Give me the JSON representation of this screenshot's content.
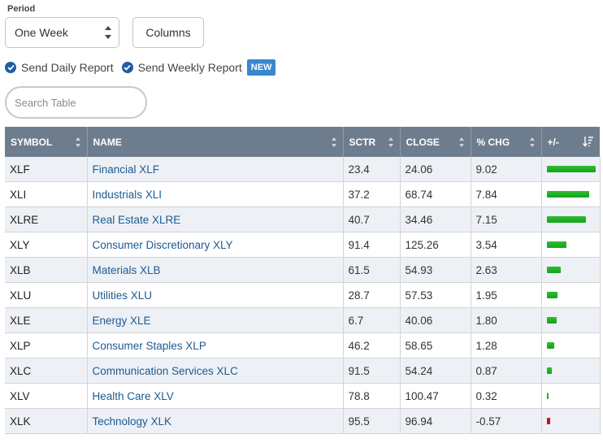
{
  "period": {
    "label": "Period",
    "selected": "One Week"
  },
  "columns_button": "Columns",
  "reports": {
    "daily": "Send Daily Report",
    "weekly": "Send Weekly Report",
    "new_badge": "NEW"
  },
  "search": {
    "placeholder": "Search Table",
    "value": ""
  },
  "table": {
    "headers": [
      "SYMBOL",
      "NAME",
      "SCTR",
      "CLOSE",
      "% CHG",
      "+/-"
    ],
    "rows": [
      {
        "symbol": "XLF",
        "name": "Financial XLF",
        "sctr": "23.4",
        "close": "24.06",
        "chg": "9.02",
        "pct": 9.02
      },
      {
        "symbol": "XLI",
        "name": "Industrials XLI",
        "sctr": "37.2",
        "close": "68.74",
        "chg": "7.84",
        "pct": 7.84
      },
      {
        "symbol": "XLRE",
        "name": "Real Estate XLRE",
        "sctr": "40.7",
        "close": "34.46",
        "chg": "7.15",
        "pct": 7.15
      },
      {
        "symbol": "XLY",
        "name": "Consumer Discretionary XLY",
        "sctr": "91.4",
        "close": "125.26",
        "chg": "3.54",
        "pct": 3.54
      },
      {
        "symbol": "XLB",
        "name": "Materials XLB",
        "sctr": "61.5",
        "close": "54.93",
        "chg": "2.63",
        "pct": 2.63
      },
      {
        "symbol": "XLU",
        "name": "Utilities XLU",
        "sctr": "28.7",
        "close": "57.53",
        "chg": "1.95",
        "pct": 1.95
      },
      {
        "symbol": "XLE",
        "name": "Energy XLE",
        "sctr": "6.7",
        "close": "40.06",
        "chg": "1.80",
        "pct": 1.8
      },
      {
        "symbol": "XLP",
        "name": "Consumer Staples XLP",
        "sctr": "46.2",
        "close": "58.65",
        "chg": "1.28",
        "pct": 1.28
      },
      {
        "symbol": "XLC",
        "name": "Communication Services XLC",
        "sctr": "91.5",
        "close": "54.24",
        "chg": "0.87",
        "pct": 0.87
      },
      {
        "symbol": "XLV",
        "name": "Health Care XLV",
        "sctr": "78.8",
        "close": "100.47",
        "chg": "0.32",
        "pct": 0.32
      },
      {
        "symbol": "XLK",
        "name": "Technology XLK",
        "sctr": "95.5",
        "close": "96.94",
        "chg": "-0.57",
        "pct": -0.57
      }
    ]
  },
  "colors": {
    "header_bg": "#6e7d8e",
    "positive_bar": "#1fae23",
    "negative_bar": "#c0121c",
    "link": "#1d5a93",
    "badge": "#3a86d0"
  }
}
